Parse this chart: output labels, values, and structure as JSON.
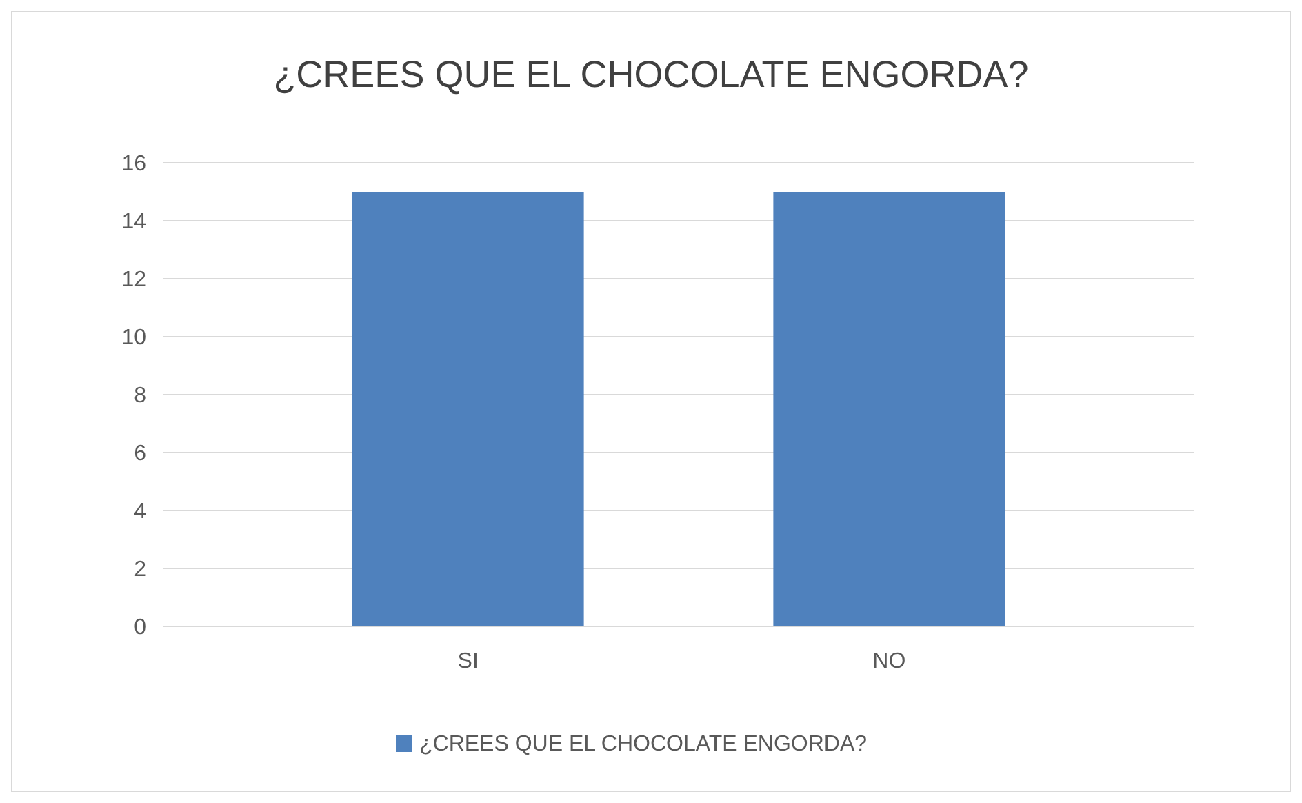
{
  "chart_data": {
    "type": "bar",
    "title": "¿CREES QUE EL CHOCOLATE ENGORDA?",
    "categories": [
      "SI",
      "NO"
    ],
    "series": [
      {
        "name": "¿CREES QUE EL CHOCOLATE ENGORDA?",
        "color": "#4f81bd",
        "values": [
          15,
          15
        ]
      }
    ],
    "ylim": [
      0,
      16
    ],
    "yticks": [
      0,
      2,
      4,
      6,
      8,
      10,
      12,
      14,
      16
    ],
    "grid": true,
    "legend": "bottom"
  }
}
